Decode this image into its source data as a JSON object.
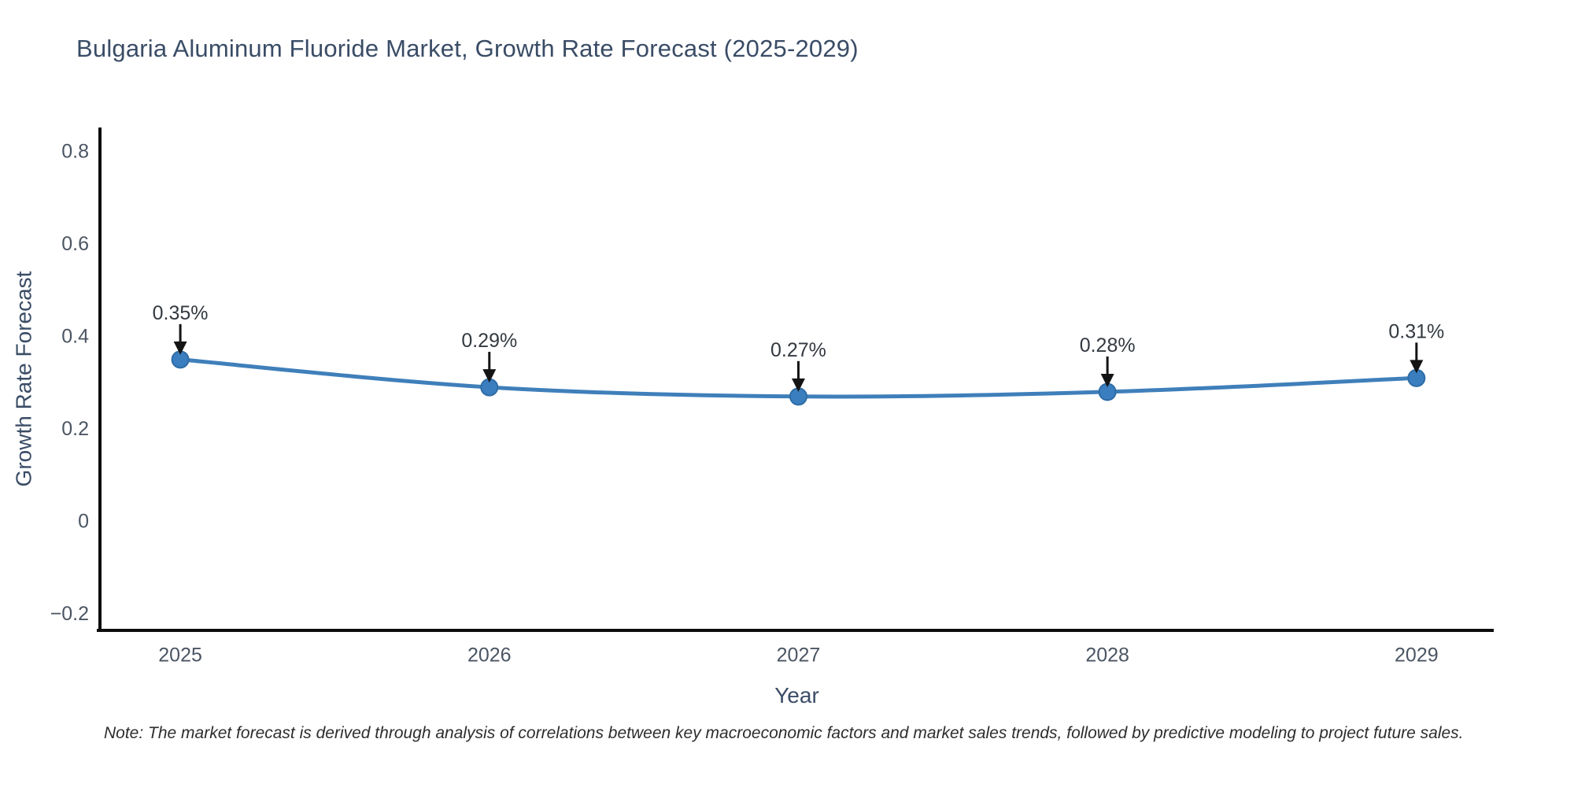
{
  "page": {
    "note": "Note: The market forecast is derived through analysis of correlations between key macroeconomic factors and market sales trends, followed by predictive modeling to project future sales."
  },
  "chart_data": {
    "type": "line",
    "title": "Bulgaria Aluminum Fluoride Market, Growth Rate Forecast (2025-2029)",
    "xlabel": "Year",
    "ylabel": "Growth Rate Forecast",
    "x": [
      2025,
      2026,
      2027,
      2028,
      2029
    ],
    "series": [
      {
        "name": "Growth Rate Forecast",
        "values": [
          0.35,
          0.29,
          0.27,
          0.28,
          0.31
        ]
      }
    ],
    "point_labels": [
      "0.35%",
      "0.29%",
      "0.27%",
      "0.28%",
      "0.31%"
    ],
    "yticks": [
      {
        "value": 0.8,
        "label": "0.8"
      },
      {
        "value": 0.6,
        "label": "0.6"
      },
      {
        "value": 0.4,
        "label": "0.4"
      },
      {
        "value": 0.2,
        "label": "0.2"
      },
      {
        "value": 0,
        "label": "0"
      },
      {
        "value": -0.2,
        "label": "−0.2"
      }
    ],
    "xlim": [
      2024.74,
      2029.25
    ],
    "ylim": [
      -0.236,
      0.852
    ],
    "grid": false,
    "legend": "none",
    "line_shape": "spline",
    "colors": {
      "line": "#3f7fba",
      "marker_fill": "#3b7ebf",
      "marker_edge": "#2e6da6",
      "axis": "#0d0d0d",
      "arrow": "#141414",
      "annotation_text": "#333940",
      "tick_label": "#4b5563",
      "axis_title": "#3a4c66",
      "title": "#3a4c66"
    }
  }
}
